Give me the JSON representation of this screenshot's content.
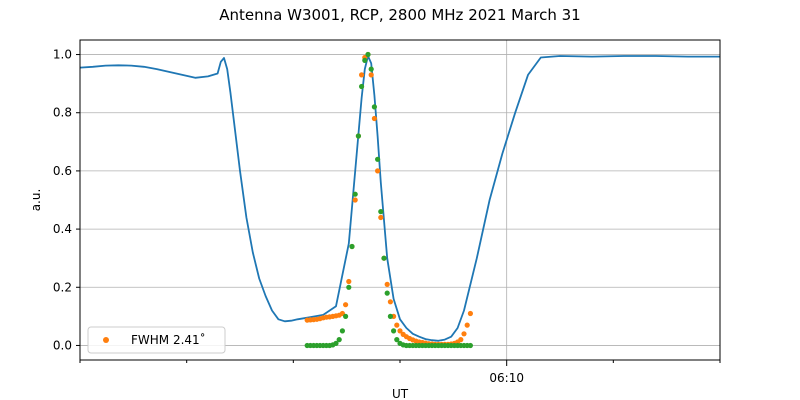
{
  "chart_data": {
    "type": "line",
    "title": "Antenna W3001, RCP, 2800 MHz 2021 March 31",
    "xlabel": "UT",
    "ylabel": "a.u.",
    "xlim": [
      0,
      1
    ],
    "ylim": [
      -0.05,
      1.05
    ],
    "yticks": [
      0.0,
      0.2,
      0.4,
      0.6,
      0.8,
      1.0
    ],
    "ytick_labels": [
      "0.0",
      "0.2",
      "0.4",
      "0.6",
      "0.8",
      "1.0"
    ],
    "xticks": [
      0.6667
    ],
    "xtick_labels": [
      "06:10"
    ],
    "xminor_ticks": [
      0.0,
      0.1667,
      0.3333,
      0.5,
      0.8333,
      1.0
    ],
    "grid": true,
    "legend": {
      "position": "lower-left",
      "entries": [
        "FWHM 2.41$^\\circ$"
      ],
      "display": [
        "FWHM 2.41˚"
      ]
    },
    "colors": {
      "line": "#1f77b4",
      "fit": "#ff7f0e",
      "model": "#2ca02c",
      "grid": "#b0b0b0"
    },
    "series": [
      {
        "style": "line",
        "color": "#1f77b4",
        "x": [
          0.0,
          0.02,
          0.04,
          0.06,
          0.08,
          0.1,
          0.12,
          0.14,
          0.16,
          0.18,
          0.2,
          0.215,
          0.22,
          0.225,
          0.23,
          0.235,
          0.24,
          0.25,
          0.26,
          0.27,
          0.28,
          0.29,
          0.3,
          0.31,
          0.32,
          0.33,
          0.34,
          0.36,
          0.38,
          0.4,
          0.42,
          0.43,
          0.44,
          0.445,
          0.45,
          0.455,
          0.46,
          0.465,
          0.47,
          0.48,
          0.49,
          0.5,
          0.51,
          0.52,
          0.53,
          0.54,
          0.55,
          0.56,
          0.57,
          0.58,
          0.59,
          0.6,
          0.62,
          0.64,
          0.66,
          0.68,
          0.7,
          0.72,
          0.75,
          0.8,
          0.85,
          0.9,
          0.95,
          1.0
        ],
        "y": [
          0.955,
          0.958,
          0.962,
          0.963,
          0.962,
          0.958,
          0.95,
          0.94,
          0.93,
          0.92,
          0.925,
          0.935,
          0.975,
          0.988,
          0.95,
          0.87,
          0.78,
          0.6,
          0.44,
          0.32,
          0.23,
          0.17,
          0.12,
          0.09,
          0.083,
          0.085,
          0.09,
          0.097,
          0.105,
          0.135,
          0.35,
          0.6,
          0.85,
          0.95,
          0.995,
          0.97,
          0.86,
          0.72,
          0.56,
          0.3,
          0.16,
          0.09,
          0.06,
          0.04,
          0.03,
          0.022,
          0.018,
          0.016,
          0.02,
          0.03,
          0.06,
          0.12,
          0.3,
          0.5,
          0.66,
          0.8,
          0.93,
          0.99,
          0.995,
          0.993,
          0.995,
          0.995,
          0.993,
          0.993
        ]
      },
      {
        "style": "scatter",
        "color": "#ff7f0e",
        "x": [
          0.355,
          0.36,
          0.365,
          0.37,
          0.375,
          0.38,
          0.385,
          0.39,
          0.395,
          0.4,
          0.405,
          0.41,
          0.415,
          0.42,
          0.425,
          0.43,
          0.435,
          0.44,
          0.445,
          0.45,
          0.455,
          0.46,
          0.465,
          0.47,
          0.475,
          0.48,
          0.485,
          0.49,
          0.495,
          0.5,
          0.505,
          0.51,
          0.515,
          0.52,
          0.525,
          0.53,
          0.535,
          0.54,
          0.545,
          0.55,
          0.555,
          0.56,
          0.565,
          0.57,
          0.575,
          0.58,
          0.585,
          0.59,
          0.595,
          0.6,
          0.605,
          0.61
        ],
        "y": [
          0.087,
          0.088,
          0.089,
          0.09,
          0.092,
          0.095,
          0.097,
          0.098,
          0.1,
          0.102,
          0.104,
          0.11,
          0.14,
          0.22,
          0.34,
          0.5,
          0.72,
          0.93,
          0.99,
          1.0,
          0.93,
          0.78,
          0.6,
          0.44,
          0.3,
          0.21,
          0.15,
          0.1,
          0.07,
          0.05,
          0.038,
          0.03,
          0.024,
          0.019,
          0.015,
          0.012,
          0.01,
          0.008,
          0.006,
          0.005,
          0.004,
          0.004,
          0.004,
          0.004,
          0.004,
          0.005,
          0.007,
          0.012,
          0.02,
          0.04,
          0.07,
          0.11
        ]
      },
      {
        "style": "scatter",
        "color": "#2ca02c",
        "x": [
          0.355,
          0.36,
          0.365,
          0.37,
          0.375,
          0.38,
          0.385,
          0.39,
          0.395,
          0.4,
          0.405,
          0.41,
          0.415,
          0.42,
          0.425,
          0.43,
          0.435,
          0.44,
          0.445,
          0.45,
          0.455,
          0.46,
          0.465,
          0.47,
          0.475,
          0.48,
          0.485,
          0.49,
          0.495,
          0.5,
          0.505,
          0.51,
          0.515,
          0.52,
          0.525,
          0.53,
          0.535,
          0.54,
          0.545,
          0.55,
          0.555,
          0.56,
          0.565,
          0.57,
          0.575,
          0.58,
          0.585,
          0.59,
          0.595,
          0.6,
          0.605,
          0.61
        ],
        "y": [
          0.0,
          0.0,
          0.0,
          0.0,
          0.0,
          0.0,
          0.0,
          0.0,
          0.002,
          0.007,
          0.02,
          0.05,
          0.1,
          0.2,
          0.34,
          0.52,
          0.72,
          0.89,
          0.98,
          1.0,
          0.95,
          0.82,
          0.64,
          0.46,
          0.3,
          0.18,
          0.1,
          0.05,
          0.02,
          0.007,
          0.002,
          0.0,
          0.0,
          0.0,
          0.0,
          0.0,
          0.0,
          0.0,
          0.0,
          0.0,
          0.0,
          0.0,
          0.0,
          0.0,
          0.0,
          0.0,
          0.0,
          0.0,
          0.0,
          0.0,
          0.0,
          0.0
        ]
      }
    ]
  }
}
